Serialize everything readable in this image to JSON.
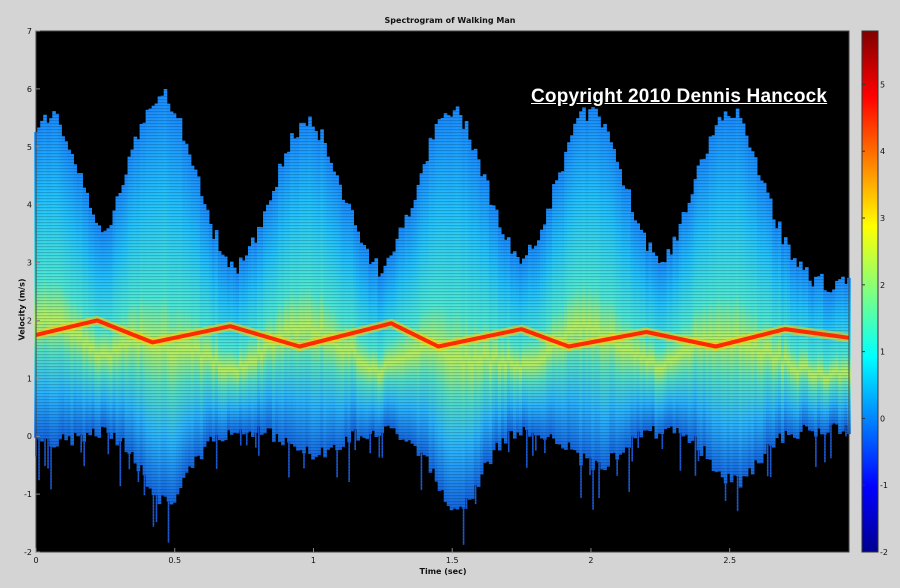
{
  "chart_data": {
    "type": "heatmap",
    "title": "Spectrogram of Walking Man",
    "xlabel": "Time (sec)",
    "ylabel": "Velocity (m/s)",
    "xlim": [
      0,
      2.93
    ],
    "ylim": [
      -2,
      7
    ],
    "x_ticks": [
      "0",
      "0.5",
      "1",
      "1.5",
      "2",
      "2.5"
    ],
    "y_ticks": [
      "-2",
      "-1",
      "0",
      "1",
      "2",
      "3",
      "4",
      "5",
      "6",
      "7"
    ],
    "colorbar": {
      "range": [
        -2,
        5.8
      ],
      "ticks": [
        "-2",
        "-1",
        "0",
        "1",
        "2",
        "3",
        "4",
        "5"
      ],
      "colormap": "jet"
    },
    "annotation": "Copyright 2010 Dennis Hancock",
    "torso_velocity": {
      "description": "Strong central ridge (peak intensity) oscillating around ~1.8 m/s",
      "t": [
        0,
        0.22,
        0.42,
        0.7,
        0.95,
        1.28,
        1.45,
        1.75,
        1.92,
        2.2,
        2.45,
        2.7,
        2.93
      ],
      "v": [
        1.75,
        2.0,
        1.62,
        1.9,
        1.55,
        1.95,
        1.55,
        1.85,
        1.55,
        1.8,
        1.55,
        1.85,
        1.7
      ]
    },
    "limb_envelope": {
      "description": "Upper/lower extent of limb returns (leg swing peaks)",
      "peaks_t": [
        0.05,
        0.45,
        0.98,
        1.5,
        2.0,
        2.5
      ],
      "upper_v": [
        5.5,
        5.9,
        5.4,
        5.6,
        5.6,
        5.6
      ],
      "lower_v": [
        -0.1,
        -1.1,
        -0.3,
        -1.2,
        -0.5,
        -0.8
      ]
    }
  },
  "colors": {
    "background": "#000000",
    "frame": "#d4d4d4",
    "ridge": "#ff2a00"
  }
}
